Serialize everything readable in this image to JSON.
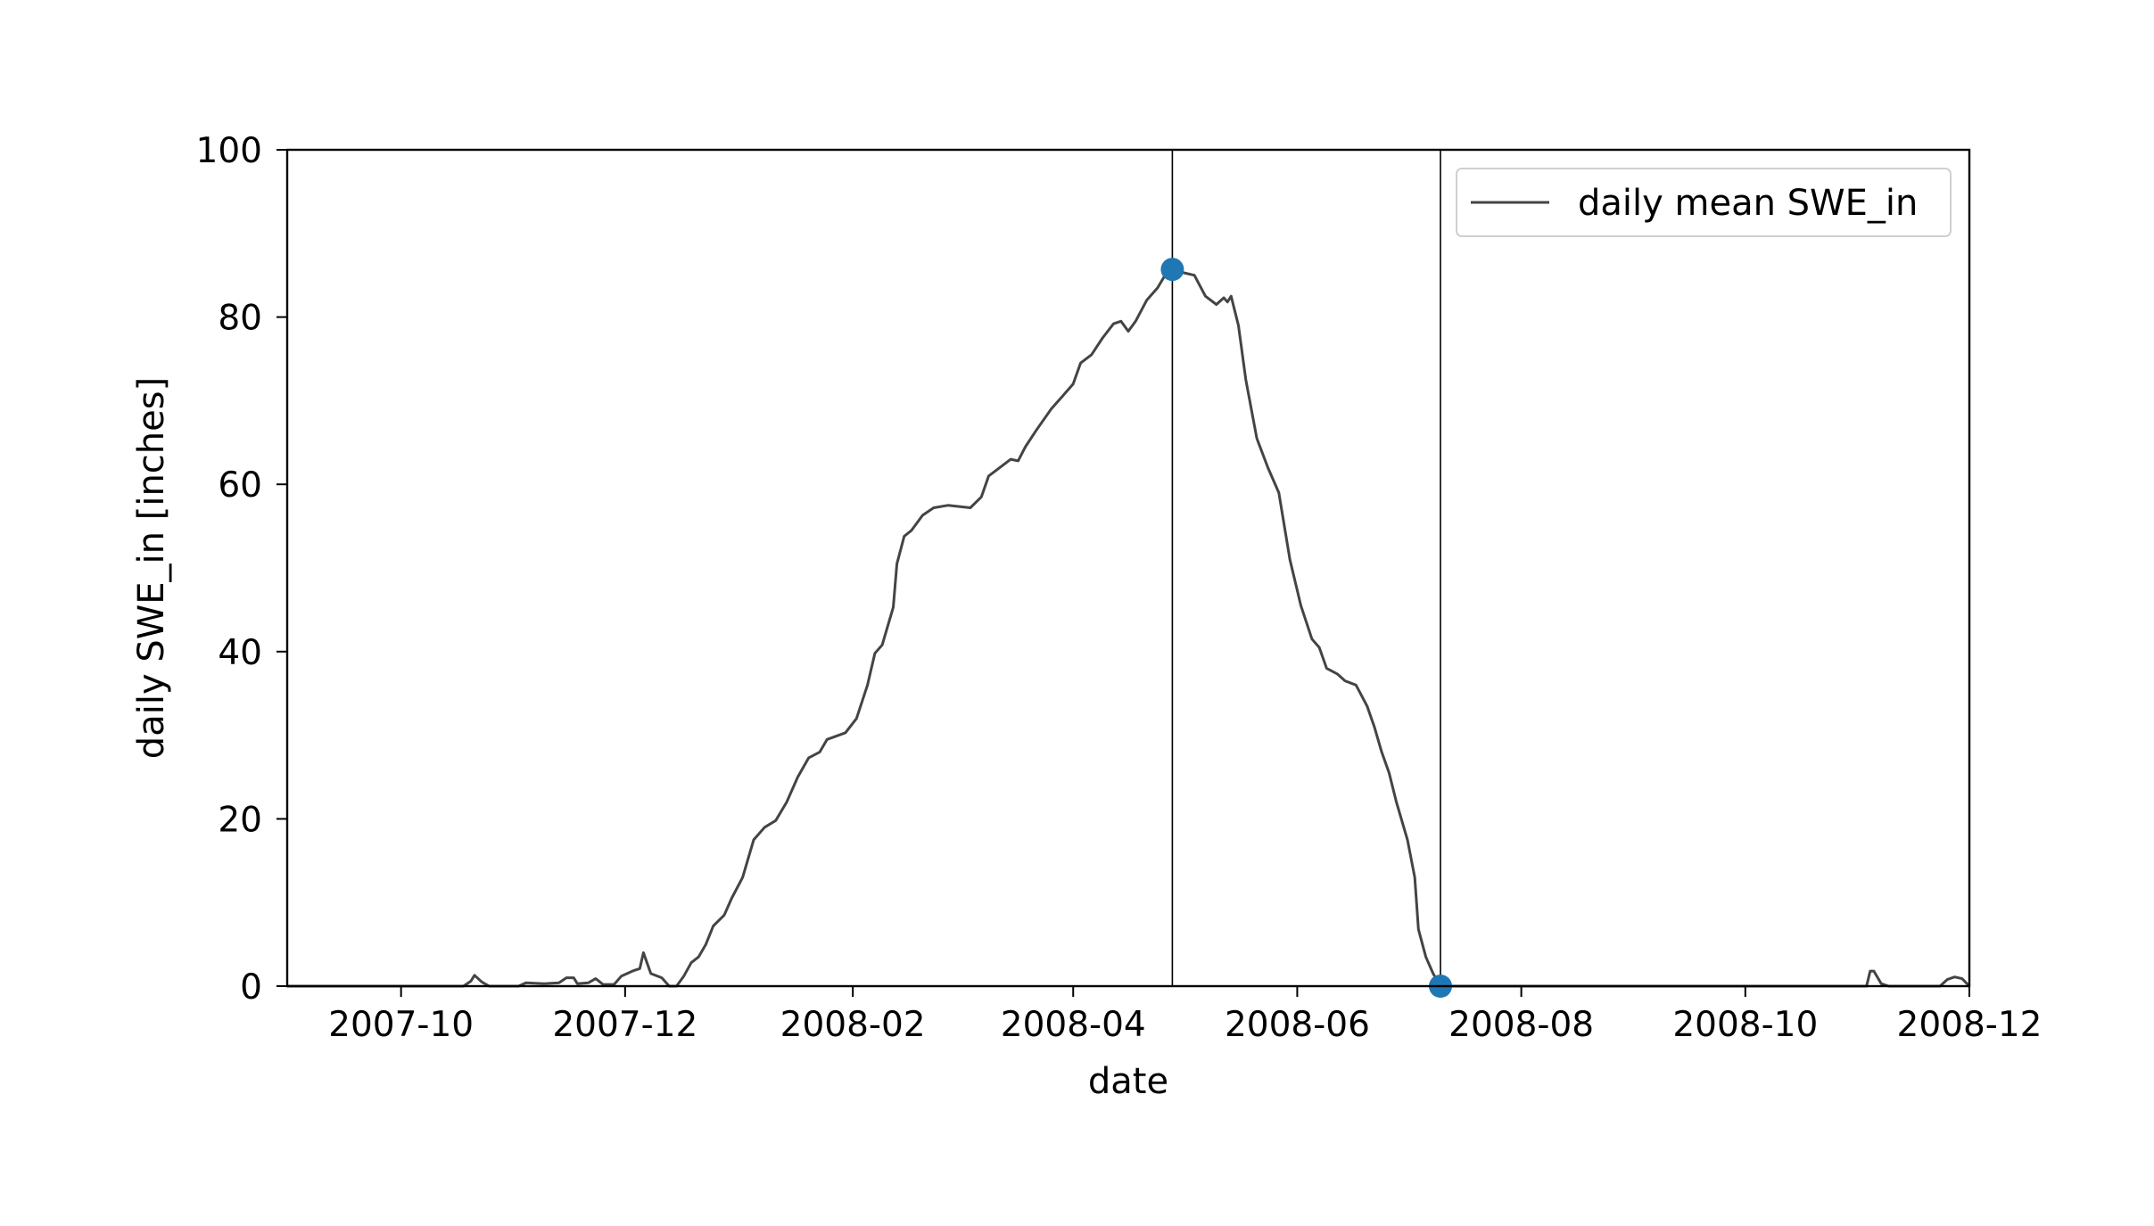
{
  "chart_data": {
    "type": "line",
    "xlabel": "date",
    "ylabel": "daily SWE_in [inches]",
    "xlim": [
      "2007-08-31",
      "2008-12-01"
    ],
    "ylim": [
      0,
      100
    ],
    "grid": false,
    "legend_position": "top-right",
    "x_ticks": [
      "2007-10-01",
      "2007-12-01",
      "2008-02-01",
      "2008-04-01",
      "2008-06-01",
      "2008-08-01",
      "2008-10-01",
      "2008-12-01"
    ],
    "x_tick_labels": [
      "2007-10",
      "2007-12",
      "2008-02",
      "2008-04",
      "2008-06",
      "2008-08",
      "2008-10",
      "2008-12"
    ],
    "y_ticks": [
      0,
      20,
      40,
      60,
      80,
      100
    ],
    "y_tick_labels": [
      "0",
      "20",
      "40",
      "60",
      "80",
      "100"
    ],
    "series": [
      {
        "name": "daily mean SWE_in",
        "color": "#444444",
        "points": [
          [
            "2007-08-31",
            0
          ],
          [
            "2007-10-18",
            0
          ],
          [
            "2007-10-20",
            0.6
          ],
          [
            "2007-10-21",
            1.3
          ],
          [
            "2007-10-23",
            0.5
          ],
          [
            "2007-10-25",
            0
          ],
          [
            "2007-11-02",
            0
          ],
          [
            "2007-11-04",
            0.4
          ],
          [
            "2007-11-09",
            0.3
          ],
          [
            "2007-11-13",
            0.4
          ],
          [
            "2007-11-15",
            1
          ],
          [
            "2007-11-17",
            1
          ],
          [
            "2007-11-18",
            0.3
          ],
          [
            "2007-11-21",
            0.4
          ],
          [
            "2007-11-23",
            0.9
          ],
          [
            "2007-11-25",
            0.2
          ],
          [
            "2007-11-28",
            0.2
          ],
          [
            "2007-11-30",
            1.2
          ],
          [
            "2007-12-03",
            1.8
          ],
          [
            "2007-12-05",
            2.1
          ],
          [
            "2007-12-06",
            4
          ],
          [
            "2007-12-08",
            1.5
          ],
          [
            "2007-12-11",
            1
          ],
          [
            "2007-12-13",
            0
          ],
          [
            "2007-12-15",
            0
          ],
          [
            "2007-12-17",
            1.2
          ],
          [
            "2007-12-19",
            2.8
          ],
          [
            "2007-12-21",
            3.5
          ],
          [
            "2007-12-23",
            5
          ],
          [
            "2007-12-25",
            7.2
          ],
          [
            "2007-12-28",
            8.5
          ],
          [
            "2007-12-30",
            10.5
          ],
          [
            "2008-01-02",
            13
          ],
          [
            "2008-01-05",
            17.5
          ],
          [
            "2008-01-08",
            19
          ],
          [
            "2008-01-11",
            19.8
          ],
          [
            "2008-01-14",
            22
          ],
          [
            "2008-01-17",
            25
          ],
          [
            "2008-01-20",
            27.3
          ],
          [
            "2008-01-23",
            28
          ],
          [
            "2008-01-25",
            29.5
          ],
          [
            "2008-01-30",
            30.3
          ],
          [
            "2008-02-02",
            32
          ],
          [
            "2008-02-05",
            36
          ],
          [
            "2008-02-07",
            39.8
          ],
          [
            "2008-02-09",
            40.8
          ],
          [
            "2008-02-12",
            45.3
          ],
          [
            "2008-02-13",
            50.5
          ],
          [
            "2008-02-15",
            53.8
          ],
          [
            "2008-02-17",
            54.5
          ],
          [
            "2008-02-20",
            56.3
          ],
          [
            "2008-02-23",
            57.2
          ],
          [
            "2008-02-27",
            57.5
          ],
          [
            "2008-03-04",
            57.2
          ],
          [
            "2008-03-07",
            58.5
          ],
          [
            "2008-03-09",
            61
          ],
          [
            "2008-03-12",
            62
          ],
          [
            "2008-03-15",
            63
          ],
          [
            "2008-03-17",
            62.8
          ],
          [
            "2008-03-19",
            64.5
          ],
          [
            "2008-03-22",
            66.5
          ],
          [
            "2008-03-26",
            69
          ],
          [
            "2008-03-29",
            70.5
          ],
          [
            "2008-04-01",
            72
          ],
          [
            "2008-04-03",
            74.5
          ],
          [
            "2008-04-06",
            75.5
          ],
          [
            "2008-04-09",
            77.5
          ],
          [
            "2008-04-12",
            79.2
          ],
          [
            "2008-04-14",
            79.5
          ],
          [
            "2008-04-16",
            78.3
          ],
          [
            "2008-04-18",
            79.5
          ],
          [
            "2008-04-21",
            82
          ],
          [
            "2008-04-24",
            83.5
          ],
          [
            "2008-04-26",
            85
          ],
          [
            "2008-04-28",
            85.7
          ],
          [
            "2008-05-01",
            85.3
          ],
          [
            "2008-05-04",
            85
          ],
          [
            "2008-05-07",
            82.5
          ],
          [
            "2008-05-10",
            81.5
          ],
          [
            "2008-05-12",
            82.3
          ],
          [
            "2008-05-13",
            81.8
          ],
          [
            "2008-05-14",
            82.5
          ],
          [
            "2008-05-16",
            79
          ],
          [
            "2008-05-18",
            72.5
          ],
          [
            "2008-05-21",
            65.5
          ],
          [
            "2008-05-24",
            62
          ],
          [
            "2008-05-27",
            59
          ],
          [
            "2008-05-30",
            51
          ],
          [
            "2008-06-02",
            45.5
          ],
          [
            "2008-06-05",
            41.5
          ],
          [
            "2008-06-07",
            40.5
          ],
          [
            "2008-06-09",
            38
          ],
          [
            "2008-06-12",
            37.3
          ],
          [
            "2008-06-14",
            36.5
          ],
          [
            "2008-06-17",
            36
          ],
          [
            "2008-06-20",
            33.5
          ],
          [
            "2008-06-22",
            31
          ],
          [
            "2008-06-24",
            28
          ],
          [
            "2008-06-26",
            25.5
          ],
          [
            "2008-06-28",
            22
          ],
          [
            "2008-07-01",
            17.5
          ],
          [
            "2008-07-03",
            13
          ],
          [
            "2008-07-04",
            6.8
          ],
          [
            "2008-07-06",
            3.5
          ],
          [
            "2008-07-08",
            1.5
          ],
          [
            "2008-07-10",
            0
          ],
          [
            "2008-11-03",
            0
          ],
          [
            "2008-11-04",
            1.8
          ],
          [
            "2008-11-05",
            1.8
          ],
          [
            "2008-11-07",
            0.3
          ],
          [
            "2008-11-09",
            0
          ],
          [
            "2008-11-23",
            0
          ],
          [
            "2008-11-25",
            0.8
          ],
          [
            "2008-11-27",
            1.1
          ],
          [
            "2008-11-29",
            0.9
          ],
          [
            "2008-12-01",
            0
          ]
        ]
      }
    ],
    "markers": {
      "color": "#1f77b4",
      "points": [
        [
          "2008-04-28",
          85.7
        ],
        [
          "2008-07-10",
          0
        ]
      ]
    },
    "vertical_lines": [
      "2008-04-28",
      "2008-07-10"
    ],
    "legend_entries": [
      {
        "label": "daily mean SWE_in",
        "color": "#444444"
      }
    ]
  }
}
